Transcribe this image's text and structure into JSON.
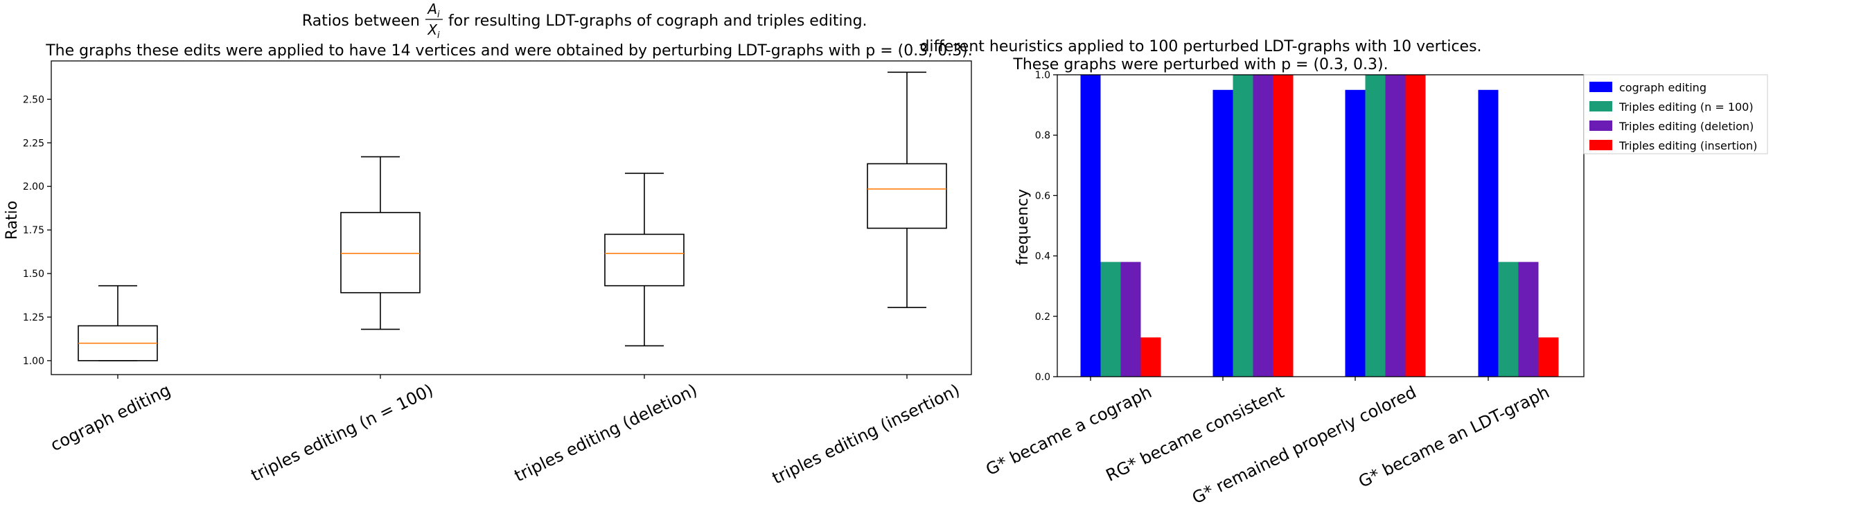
{
  "chart_data": [
    {
      "type": "box",
      "title_line1_prefix": "Ratios between",
      "title_fraction_num": "A",
      "title_fraction_den": "X",
      "title_fraction_sub": "i",
      "title_line1_suffix": "for resulting LDT-graphs of cograph and triples editing.",
      "title_line2": "The graphs these edits were applied to have 14 vertices and were obtained by perturbing LDT-graphs with p = (0.3, 0.3).",
      "ylabel": "Ratio",
      "ylim": [
        0.92,
        2.72
      ],
      "yticks": [
        1.0,
        1.25,
        1.5,
        1.75,
        2.0,
        2.25,
        2.5
      ],
      "ytick_labels": [
        "1.00",
        "1.25",
        "1.50",
        "1.75",
        "2.00",
        "2.25",
        "2.50"
      ],
      "categories": [
        "cograph editing",
        "triples editing (n = 100)",
        "triples editing (deletion)",
        "triples editing (insertion)"
      ],
      "boxes": [
        {
          "whislo": 1.0,
          "q1": 1.0,
          "med": 1.1,
          "q3": 1.2,
          "whishi": 1.43
        },
        {
          "whislo": 1.18,
          "q1": 1.39,
          "med": 1.615,
          "q3": 1.85,
          "whishi": 2.17
        },
        {
          "whislo": 1.085,
          "q1": 1.43,
          "med": 1.615,
          "q3": 1.725,
          "whishi": 2.075
        },
        {
          "whislo": 1.305,
          "q1": 1.76,
          "med": 1.985,
          "q3": 2.13,
          "whishi": 2.655
        }
      ],
      "colors": {
        "median": "#ff7f0e",
        "box": "#000000"
      }
    },
    {
      "type": "bar",
      "title_line1": "different heuristics applied to 100 perturbed LDT-graphs with 10 vertices.",
      "title_line2": "These graphs were perturbed with p = (0.3, 0.3).",
      "ylabel": "frequency",
      "ylim": [
        0.0,
        1.0
      ],
      "yticks": [
        0.0,
        0.2,
        0.4,
        0.6,
        0.8,
        1.0
      ],
      "ytick_labels": [
        "0.0",
        "0.2",
        "0.4",
        "0.6",
        "0.8",
        "1.0"
      ],
      "categories": [
        "G* became a cograph",
        "RG* became consistent",
        "G* remained properly colored",
        "G* became an LDT-graph"
      ],
      "series": [
        {
          "name": "cograph editing",
          "color": "#0000ff",
          "values": [
            1.0,
            0.95,
            0.95,
            0.95
          ]
        },
        {
          "name": "Triples editing (n = 100)",
          "color": "#1b9e77",
          "values": [
            0.38,
            1.0,
            1.0,
            0.38
          ]
        },
        {
          "name": "Triples editing (deletion)",
          "color": "#6a1cb4",
          "values": [
            0.38,
            1.0,
            1.0,
            0.38
          ]
        },
        {
          "name": "Triples editing (insertion)",
          "color": "#ff0000",
          "values": [
            0.13,
            1.0,
            1.0,
            0.13
          ]
        }
      ],
      "legend_position": "upper right, outside plot"
    }
  ]
}
